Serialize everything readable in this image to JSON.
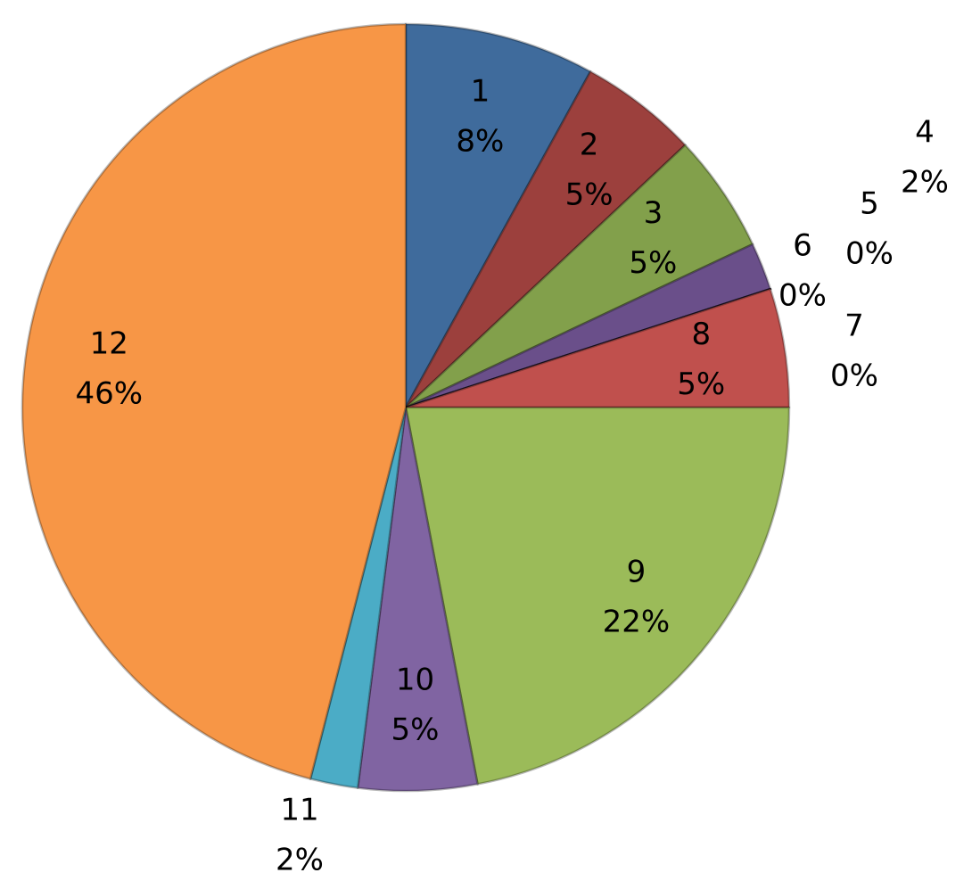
{
  "chart_data": {
    "type": "pie",
    "categories": [
      "1",
      "2",
      "3",
      "4",
      "5",
      "6",
      "7",
      "8",
      "9",
      "10",
      "11",
      "12"
    ],
    "values": [
      8,
      5,
      5,
      2,
      0,
      0,
      0,
      5,
      22,
      5,
      2,
      46
    ],
    "value_labels": [
      "8%",
      "5%",
      "5%",
      "2%",
      "0%",
      "0%",
      "0%",
      "5%",
      "22%",
      "5%",
      "2%",
      "46%"
    ],
    "colors": [
      "#3f6b9c",
      "#9c403d",
      "#82a04b",
      "#6a4f8a",
      "#2f8fad",
      "#e68a3a",
      "#8aa2c8",
      "#c0504d",
      "#9bbb59",
      "#8064a2",
      "#4bacc6",
      "#f79646"
    ]
  }
}
